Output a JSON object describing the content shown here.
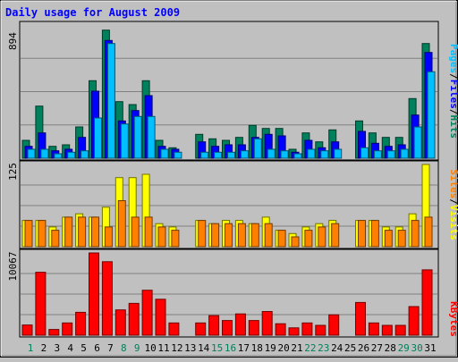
{
  "chart_data": [
    {
      "type": "bar",
      "title": "Daily usage for August 2009",
      "ymax_label": "894",
      "ylim": [
        0,
        894
      ],
      "categories": [
        "1",
        "2",
        "3",
        "4",
        "5",
        "6",
        "7",
        "8",
        "9",
        "10",
        "11",
        "12",
        "13",
        "14",
        "15",
        "16",
        "17",
        "18",
        "19",
        "20",
        "21",
        "22",
        "23",
        "24",
        "25",
        "26",
        "27",
        "28",
        "29",
        "30",
        "31"
      ],
      "series": [
        {
          "name": "Hits",
          "color": "#00805c",
          "values": [
            120,
            350,
            80,
            90,
            210,
            520,
            860,
            380,
            360,
            520,
            120,
            70,
            0,
            160,
            130,
            120,
            140,
            220,
            200,
            200,
            60,
            170,
            110,
            190,
            0,
            250,
            170,
            140,
            140,
            400,
            770
          ]
        },
        {
          "name": "Files",
          "color": "#0000ff",
          "values": [
            80,
            170,
            50,
            60,
            140,
            450,
            790,
            250,
            320,
            420,
            80,
            60,
            0,
            110,
            80,
            90,
            90,
            140,
            160,
            150,
            40,
            120,
            70,
            110,
            0,
            180,
            100,
            80,
            90,
            290,
            710
          ]
        },
        {
          "name": "Pages",
          "color": "#00c0ff",
          "values": [
            60,
            60,
            30,
            40,
            50,
            270,
            770,
            230,
            280,
            280,
            60,
            40,
            0,
            40,
            40,
            40,
            50,
            130,
            60,
            50,
            30,
            60,
            50,
            60,
            0,
            70,
            50,
            50,
            60,
            210,
            580
          ]
        }
      ],
      "legend": [
        "Pages",
        "/",
        "Files",
        "/",
        "Hits"
      ],
      "legend_colors": [
        "#00c0ff",
        "#000000",
        "#0000ff",
        "#000000",
        "#00805c"
      ]
    },
    {
      "type": "bar",
      "ymax_label": "125",
      "ylim": [
        0,
        125
      ],
      "categories": [
        "1",
        "2",
        "3",
        "4",
        "5",
        "6",
        "7",
        "8",
        "9",
        "10",
        "11",
        "12",
        "13",
        "14",
        "15",
        "16",
        "17",
        "18",
        "19",
        "20",
        "21",
        "22",
        "23",
        "24",
        "25",
        "26",
        "27",
        "28",
        "29",
        "30",
        "31"
      ],
      "series": [
        {
          "name": "Visits",
          "color": "#ffff00",
          "values": [
            40,
            40,
            30,
            45,
            50,
            45,
            60,
            105,
            105,
            110,
            35,
            30,
            0,
            40,
            35,
            40,
            40,
            35,
            45,
            25,
            20,
            30,
            35,
            40,
            0,
            40,
            40,
            30,
            30,
            50,
            125
          ]
        },
        {
          "name": "Sites",
          "color": "#ff8000",
          "values": [
            40,
            40,
            25,
            45,
            45,
            45,
            30,
            70,
            45,
            45,
            30,
            25,
            0,
            40,
            35,
            35,
            35,
            35,
            35,
            25,
            15,
            25,
            30,
            35,
            0,
            40,
            40,
            25,
            25,
            40,
            45
          ]
        }
      ],
      "legend": [
        "Sites",
        "/",
        "Visits"
      ],
      "legend_colors": [
        "#ff8000",
        "#000000",
        "#ffff00"
      ]
    },
    {
      "type": "bar",
      "ymax_label": "10067",
      "ylim": [
        0,
        10067
      ],
      "categories": [
        "1",
        "2",
        "3",
        "4",
        "5",
        "6",
        "7",
        "8",
        "9",
        "10",
        "11",
        "12",
        "13",
        "14",
        "15",
        "16",
        "17",
        "18",
        "19",
        "20",
        "21",
        "22",
        "23",
        "24",
        "25",
        "26",
        "27",
        "28",
        "29",
        "30",
        "31"
      ],
      "series": [
        {
          "name": "KBytes",
          "color": "#ff0000",
          "values": [
            1250,
            7700,
            700,
            1500,
            2800,
            10067,
            9000,
            3100,
            3900,
            5500,
            4400,
            1500,
            0,
            1500,
            2400,
            1800,
            2600,
            1800,
            2900,
            1400,
            900,
            1500,
            1200,
            2500,
            0,
            4000,
            1500,
            1200,
            1200,
            3500,
            8000
          ]
        }
      ],
      "legend": [
        "KBytes"
      ],
      "legend_colors": [
        "#ff0000"
      ]
    }
  ],
  "x_label_colors": {
    "weekday": "#000000",
    "weekend": "#00805c"
  },
  "weekend_days": [
    "1",
    "8",
    "9",
    "15",
    "16",
    "22",
    "23",
    "29",
    "30"
  ]
}
